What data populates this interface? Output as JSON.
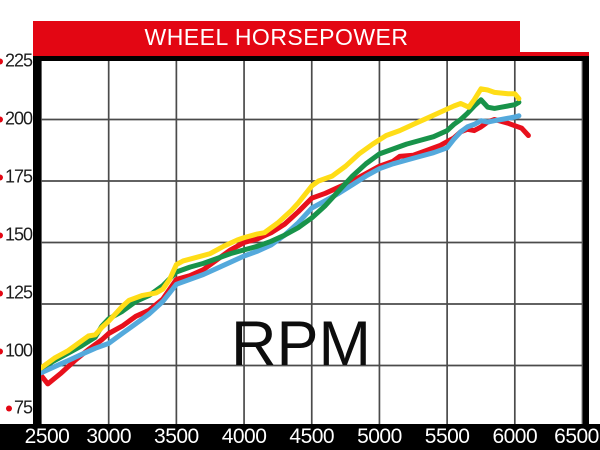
{
  "title": "WHEEL HORSEPOWER",
  "center_label": "RPM",
  "colors": {
    "banner_red": "#e30613",
    "tick_bullet_red": "#e30613",
    "grid_gray": "#4b4b4b",
    "border_black": "#000000",
    "band_black": "#000000",
    "series_yellow": "#ffdd17",
    "series_green": "#18934a",
    "series_red": "#e8101c",
    "series_blue": "#54a9dc"
  },
  "y_axis": {
    "tick_labels": [
      "225",
      "200",
      "175",
      "150",
      "125",
      "100",
      "75"
    ]
  },
  "x_axis": {
    "tick_labels": [
      "2500",
      "3000",
      "3500",
      "4000",
      "4500",
      "5000",
      "5500",
      "6000",
      "6500"
    ]
  },
  "chart_data": {
    "type": "line",
    "title": "WHEEL HORSEPOWER",
    "xlabel": "RPM",
    "ylabel": "Wheel horsepower",
    "x_ticks": [
      2500,
      3000,
      3500,
      4000,
      4500,
      5000,
      5500,
      6000,
      6500
    ],
    "y_ticks": [
      225,
      200,
      175,
      150,
      125,
      100,
      75
    ],
    "x_range": [
      2500,
      6500
    ],
    "y_range": [
      75,
      225
    ],
    "grid": true,
    "legend": false,
    "series": [
      {
        "name": "red",
        "color": "#e8101c",
        "points": [
          [
            2500,
            96
          ],
          [
            2550,
            92.5
          ],
          [
            2650,
            97
          ],
          [
            2750,
            102
          ],
          [
            2850,
            106.5
          ],
          [
            2950,
            110.5
          ],
          [
            3000,
            113
          ],
          [
            3100,
            116
          ],
          [
            3200,
            120
          ],
          [
            3300,
            122.5
          ],
          [
            3400,
            127
          ],
          [
            3500,
            135
          ],
          [
            3600,
            136.5
          ],
          [
            3700,
            139
          ],
          [
            3800,
            143
          ],
          [
            3900,
            147
          ],
          [
            4000,
            150
          ],
          [
            4100,
            151.5
          ],
          [
            4200,
            154
          ],
          [
            4300,
            157.5
          ],
          [
            4400,
            162.5
          ],
          [
            4500,
            168
          ],
          [
            4600,
            170
          ],
          [
            4700,
            172.5
          ],
          [
            4800,
            175
          ],
          [
            4900,
            178
          ],
          [
            5000,
            181
          ],
          [
            5100,
            183
          ],
          [
            5150,
            185
          ],
          [
            5250,
            185.5
          ],
          [
            5350,
            187.5
          ],
          [
            5450,
            189.5
          ],
          [
            5550,
            192.5
          ],
          [
            5600,
            195
          ],
          [
            5650,
            196
          ],
          [
            5700,
            195.5
          ],
          [
            5750,
            197
          ],
          [
            5800,
            199
          ],
          [
            5850,
            200
          ],
          [
            5950,
            198.5
          ],
          [
            6000,
            197.5
          ],
          [
            6050,
            196.5
          ],
          [
            6100,
            193.5
          ]
        ]
      },
      {
        "name": "blue",
        "color": "#54a9dc",
        "points": [
          [
            2500,
            97
          ],
          [
            2600,
            99.5
          ],
          [
            2700,
            102
          ],
          [
            2800,
            104.5
          ],
          [
            2900,
            107
          ],
          [
            3000,
            109
          ],
          [
            3100,
            113
          ],
          [
            3200,
            117
          ],
          [
            3300,
            121
          ],
          [
            3400,
            126
          ],
          [
            3500,
            133
          ],
          [
            3600,
            135
          ],
          [
            3700,
            137
          ],
          [
            3800,
            139.5
          ],
          [
            3900,
            142
          ],
          [
            4000,
            144.5
          ],
          [
            4100,
            146.5
          ],
          [
            4200,
            149
          ],
          [
            4300,
            153
          ],
          [
            4400,
            158
          ],
          [
            4500,
            164
          ],
          [
            4600,
            167
          ],
          [
            4700,
            170
          ],
          [
            4800,
            173.5
          ],
          [
            4900,
            177
          ],
          [
            5000,
            180
          ],
          [
            5100,
            182
          ],
          [
            5200,
            183.5
          ],
          [
            5300,
            185
          ],
          [
            5400,
            186.5
          ],
          [
            5500,
            188.5
          ],
          [
            5550,
            192
          ],
          [
            5600,
            195
          ],
          [
            5650,
            197
          ],
          [
            5700,
            198
          ],
          [
            5750,
            199.5
          ],
          [
            5800,
            199
          ],
          [
            5850,
            199.5
          ],
          [
            5900,
            200
          ],
          [
            6000,
            201
          ],
          [
            6030,
            201.5
          ]
        ]
      },
      {
        "name": "green",
        "color": "#18934a",
        "points": [
          [
            2500,
            99
          ],
          [
            2600,
            102
          ],
          [
            2700,
            105
          ],
          [
            2800,
            108
          ],
          [
            2900,
            111.5
          ],
          [
            2950,
            116
          ],
          [
            3000,
            119
          ],
          [
            3100,
            122
          ],
          [
            3200,
            126
          ],
          [
            3300,
            128.5
          ],
          [
            3400,
            132.5
          ],
          [
            3500,
            138
          ],
          [
            3600,
            140
          ],
          [
            3700,
            141.5
          ],
          [
            3800,
            143.5
          ],
          [
            3900,
            145.5
          ],
          [
            4000,
            147
          ],
          [
            4100,
            148.5
          ],
          [
            4200,
            150.5
          ],
          [
            4300,
            153
          ],
          [
            4400,
            156
          ],
          [
            4500,
            160
          ],
          [
            4600,
            165
          ],
          [
            4700,
            171
          ],
          [
            4800,
            177
          ],
          [
            4900,
            182
          ],
          [
            5000,
            186
          ],
          [
            5100,
            188
          ],
          [
            5200,
            190
          ],
          [
            5300,
            191.5
          ],
          [
            5400,
            193
          ],
          [
            5500,
            195.5
          ],
          [
            5550,
            198
          ],
          [
            5600,
            200
          ],
          [
            5650,
            202.5
          ],
          [
            5700,
            205.5
          ],
          [
            5750,
            208
          ],
          [
            5800,
            205
          ],
          [
            5850,
            204.5
          ],
          [
            5900,
            205
          ],
          [
            6000,
            206
          ],
          [
            6030,
            207
          ]
        ]
      },
      {
        "name": "yellow",
        "color": "#ffdd17",
        "points": [
          [
            2500,
            99
          ],
          [
            2600,
            103
          ],
          [
            2700,
            106
          ],
          [
            2800,
            110
          ],
          [
            2850,
            112
          ],
          [
            2900,
            112.5
          ],
          [
            2950,
            115.5
          ],
          [
            3000,
            118
          ],
          [
            3100,
            124
          ],
          [
            3150,
            126.5
          ],
          [
            3250,
            128.5
          ],
          [
            3350,
            129.5
          ],
          [
            3400,
            131
          ],
          [
            3450,
            135
          ],
          [
            3500,
            141
          ],
          [
            3550,
            142.5
          ],
          [
            3650,
            144
          ],
          [
            3750,
            145.5
          ],
          [
            3850,
            148.5
          ],
          [
            3950,
            151
          ],
          [
            4000,
            152
          ],
          [
            4100,
            153.5
          ],
          [
            4150,
            154
          ],
          [
            4250,
            158
          ],
          [
            4350,
            163
          ],
          [
            4400,
            166
          ],
          [
            4500,
            173
          ],
          [
            4550,
            175
          ],
          [
            4650,
            177
          ],
          [
            4750,
            181
          ],
          [
            4850,
            186
          ],
          [
            4950,
            190
          ],
          [
            5050,
            193.5
          ],
          [
            5150,
            195.5
          ],
          [
            5250,
            198
          ],
          [
            5350,
            200.5
          ],
          [
            5450,
            203
          ],
          [
            5550,
            205.5
          ],
          [
            5600,
            206.5
          ],
          [
            5660,
            205
          ],
          [
            5700,
            208
          ],
          [
            5750,
            212.5
          ],
          [
            5800,
            212
          ],
          [
            5850,
            211
          ],
          [
            5950,
            210.5
          ],
          [
            6000,
            210.5
          ],
          [
            6030,
            208.5
          ]
        ]
      }
    ]
  }
}
